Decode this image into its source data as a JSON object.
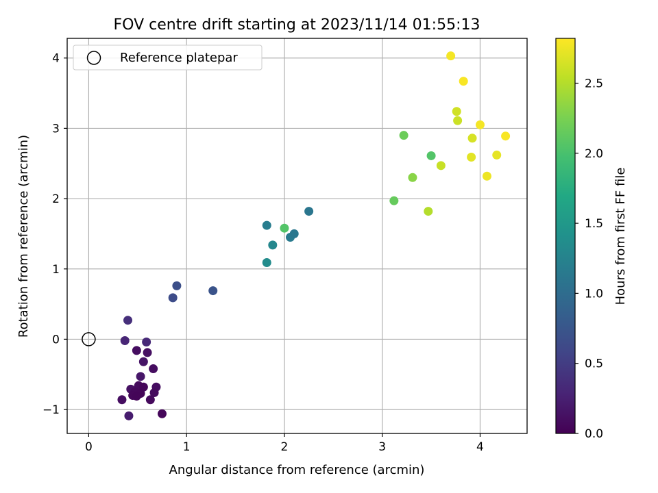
{
  "chart_data": {
    "type": "scatter",
    "title": "FOV centre drift starting at 2023/11/14 01:55:13",
    "xlabel": "Angular distance from reference (arcmin)",
    "ylabel": "Rotation from reference (arcmin)",
    "xlim": [
      -0.22,
      4.48
    ],
    "ylim": [
      -1.34,
      4.28
    ],
    "xticks": [
      0,
      1,
      2,
      3,
      4
    ],
    "xtick_labels": [
      "0",
      "1",
      "2",
      "3",
      "4"
    ],
    "yticks": [
      -1,
      0,
      1,
      2,
      3,
      4
    ],
    "ytick_labels": [
      "−1",
      "0",
      "1",
      "2",
      "3",
      "4"
    ],
    "grid": true,
    "legend": {
      "placement": "top-left",
      "entries": [
        {
          "label": "Reference platepar",
          "marker": "open-circle"
        }
      ]
    },
    "colorbar": {
      "label": "Hours from first FF file",
      "colormap": "viridis",
      "range": [
        0.0,
        2.82
      ],
      "ticks": [
        0.0,
        0.5,
        1.0,
        1.5,
        2.0,
        2.5
      ],
      "tick_labels": [
        "0.0",
        "0.5",
        "1.0",
        "1.5",
        "2.0",
        "2.5"
      ]
    },
    "reference_point": {
      "x": 0,
      "y": 0
    },
    "points": [
      {
        "x": 0.4,
        "y": 0.27,
        "c": 0.38
      },
      {
        "x": 0.37,
        "y": -0.02,
        "c": 0.3
      },
      {
        "x": 0.59,
        "y": -0.04,
        "c": 0.33
      },
      {
        "x": 0.49,
        "y": -0.16,
        "c": 0.1
      },
      {
        "x": 0.6,
        "y": -0.19,
        "c": 0.12
      },
      {
        "x": 0.56,
        "y": -0.32,
        "c": 0.15
      },
      {
        "x": 0.66,
        "y": -0.42,
        "c": 0.1
      },
      {
        "x": 0.53,
        "y": -0.53,
        "c": 0.18
      },
      {
        "x": 0.51,
        "y": -0.66,
        "c": 0.08
      },
      {
        "x": 0.56,
        "y": -0.68,
        "c": 0.05
      },
      {
        "x": 0.69,
        "y": -0.68,
        "c": 0.1
      },
      {
        "x": 0.43,
        "y": -0.71,
        "c": 0.12
      },
      {
        "x": 0.47,
        "y": -0.75,
        "c": 0.06
      },
      {
        "x": 0.53,
        "y": -0.77,
        "c": 0.04
      },
      {
        "x": 0.67,
        "y": -0.76,
        "c": 0.08
      },
      {
        "x": 0.45,
        "y": -0.8,
        "c": 0.05
      },
      {
        "x": 0.49,
        "y": -0.81,
        "c": 0.03
      },
      {
        "x": 0.34,
        "y": -0.86,
        "c": 0.1
      },
      {
        "x": 0.63,
        "y": -0.86,
        "c": 0.07
      },
      {
        "x": 0.41,
        "y": -1.09,
        "c": 0.22
      },
      {
        "x": 0.75,
        "y": -1.06,
        "c": 0.05
      },
      {
        "x": 0.86,
        "y": 0.59,
        "c": 0.65
      },
      {
        "x": 0.9,
        "y": 0.76,
        "c": 0.68
      },
      {
        "x": 1.27,
        "y": 0.69,
        "c": 0.72
      },
      {
        "x": 1.82,
        "y": 1.62,
        "c": 1.18
      },
      {
        "x": 2.0,
        "y": 1.58,
        "c": 2.05
      },
      {
        "x": 1.88,
        "y": 1.34,
        "c": 1.3
      },
      {
        "x": 2.06,
        "y": 1.45,
        "c": 1.15
      },
      {
        "x": 2.1,
        "y": 1.5,
        "c": 1.12
      },
      {
        "x": 1.82,
        "y": 1.09,
        "c": 1.35
      },
      {
        "x": 2.25,
        "y": 1.82,
        "c": 1.1
      },
      {
        "x": 3.12,
        "y": 1.97,
        "c": 2.15
      },
      {
        "x": 3.47,
        "y": 1.82,
        "c": 2.5
      },
      {
        "x": 3.31,
        "y": 2.3,
        "c": 2.32
      },
      {
        "x": 3.22,
        "y": 2.9,
        "c": 2.18
      },
      {
        "x": 3.5,
        "y": 2.61,
        "c": 2.05
      },
      {
        "x": 3.6,
        "y": 2.47,
        "c": 2.58
      },
      {
        "x": 3.7,
        "y": 4.03,
        "c": 2.78
      },
      {
        "x": 3.83,
        "y": 3.67,
        "c": 2.8
      },
      {
        "x": 3.76,
        "y": 3.24,
        "c": 2.62
      },
      {
        "x": 3.77,
        "y": 3.11,
        "c": 2.6
      },
      {
        "x": 4.0,
        "y": 3.05,
        "c": 2.78
      },
      {
        "x": 3.92,
        "y": 2.86,
        "c": 2.65
      },
      {
        "x": 3.91,
        "y": 2.59,
        "c": 2.7
      },
      {
        "x": 4.07,
        "y": 2.32,
        "c": 2.75
      },
      {
        "x": 4.17,
        "y": 2.62,
        "c": 2.72
      },
      {
        "x": 4.26,
        "y": 2.89,
        "c": 2.8
      }
    ]
  }
}
